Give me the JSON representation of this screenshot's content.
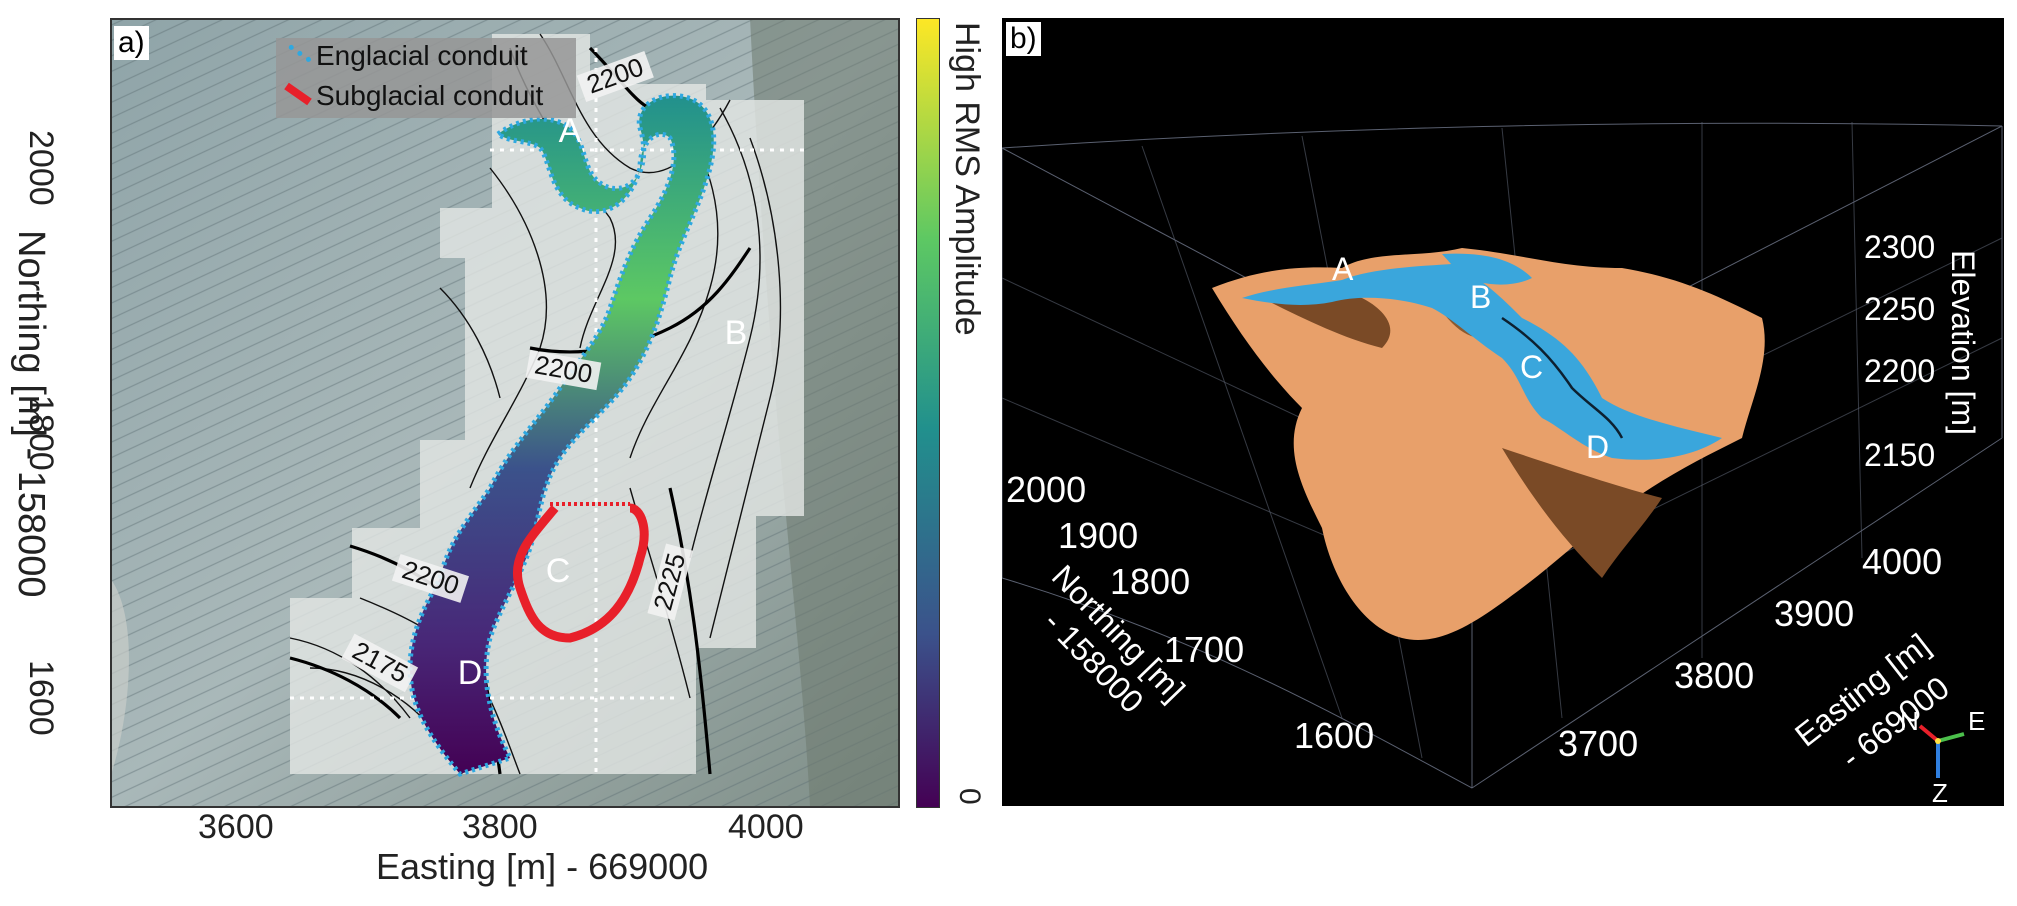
{
  "panel_a": {
    "tag": "a)",
    "legend": {
      "englacial": "Englacial conduit",
      "subglacial": "Subglacial conduit"
    },
    "point_labels": [
      "A",
      "B",
      "C",
      "D"
    ],
    "contour_labels": [
      "2200",
      "2200",
      "2200",
      "2175",
      "2225"
    ],
    "x_axis": {
      "label": "Easting [m] - 669000",
      "ticks": [
        "3600",
        "3800",
        "4000"
      ]
    },
    "y_axis": {
      "label": "Northing [m] - 158000",
      "ticks": [
        "2000",
        "1800",
        "1600"
      ]
    },
    "colorbar": {
      "label": "High RMS Amplitude",
      "low": "0"
    }
  },
  "panel_b": {
    "tag": "b)",
    "point_labels": [
      "A",
      "B",
      "C",
      "D"
    ],
    "z_axis": {
      "label": "Elevation [m]",
      "ticks": [
        "2300",
        "2250",
        "2200",
        "2150"
      ]
    },
    "northing_axis": {
      "label_line1": "Northing [m]",
      "label_line2": "- 158000",
      "ticks": [
        "2000",
        "1900",
        "1800",
        "1700",
        "1600"
      ]
    },
    "easting_axis": {
      "label_line1": "Easting [m]",
      "label_line2": "- 669000",
      "ticks": [
        "4000",
        "3900",
        "3800",
        "3700"
      ]
    },
    "orientation": {
      "n": "N",
      "e": "E",
      "z": "Z"
    }
  },
  "colors": {
    "englacial": "#2fa8e0",
    "subglacial": "#e8202a",
    "terrain_light": "#e8a06a",
    "terrain_dark": "#7a4a26",
    "water": "#3aa6dc"
  }
}
